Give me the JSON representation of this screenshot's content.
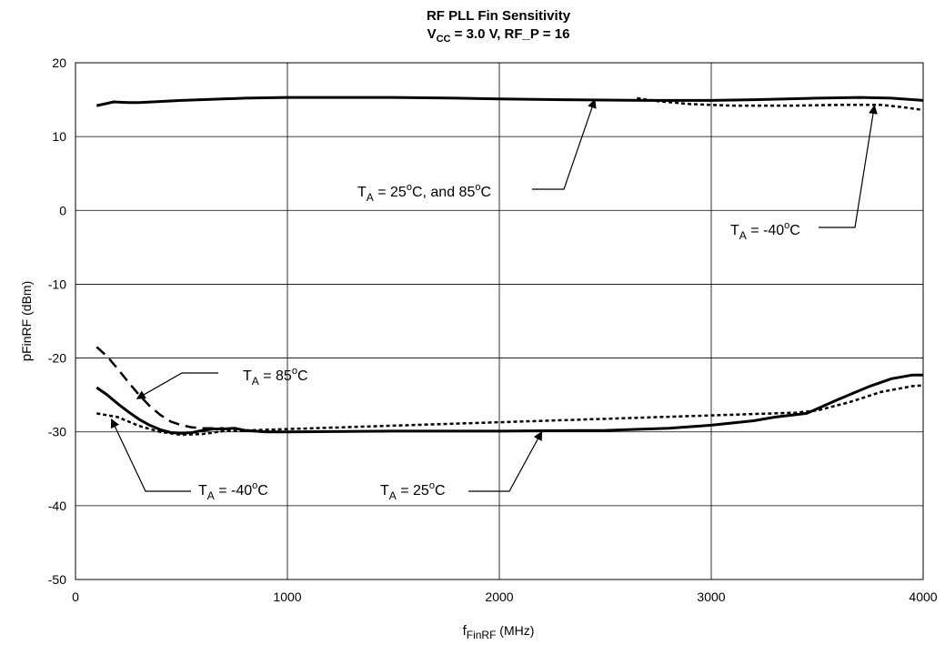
{
  "chart_data": {
    "type": "line",
    "title": "RF PLL Fin Sensitivity",
    "subtitle": {
      "main": "V",
      "sub": "CC",
      "rest": " = 3.0 V, RF_P = 16"
    },
    "xlabel": {
      "main": "f",
      "sub": "FinRF",
      "rest": " (MHz)"
    },
    "ylabel": {
      "main": "p",
      "sub": "FinRF",
      "rest": " (dBm)"
    },
    "xlim": [
      0,
      4000
    ],
    "ylim": [
      -50,
      20
    ],
    "x_ticks": [
      0,
      1000,
      2000,
      3000,
      4000
    ],
    "y_ticks": [
      20,
      10,
      0,
      -10,
      -20,
      -30,
      -40,
      -50
    ],
    "x_tick_labels": [
      "0",
      "1000",
      "2000",
      "3000",
      "4000"
    ],
    "y_tick_labels": [
      "20",
      "10",
      "0",
      "-10",
      "-20",
      "-30",
      "-40",
      "-50"
    ],
    "grid": true,
    "series": [
      {
        "style": "solid",
        "points": [
          [
            100,
            14.2
          ],
          [
            150,
            14.5
          ],
          [
            180,
            14.7
          ],
          [
            250,
            14.6
          ],
          [
            300,
            14.6
          ],
          [
            500,
            14.9
          ],
          [
            800,
            15.2
          ],
          [
            1000,
            15.3
          ],
          [
            1200,
            15.3
          ],
          [
            1500,
            15.3
          ],
          [
            1800,
            15.2
          ],
          [
            2000,
            15.1
          ],
          [
            2300,
            15.0
          ],
          [
            2500,
            14.95
          ],
          [
            2700,
            14.9
          ],
          [
            3000,
            14.9
          ],
          [
            3200,
            15.0
          ],
          [
            3500,
            15.2
          ],
          [
            3700,
            15.3
          ],
          [
            3850,
            15.2
          ],
          [
            4000,
            14.9
          ]
        ]
      },
      {
        "style": "dotted",
        "points": [
          [
            2650,
            15.2
          ],
          [
            2750,
            14.8
          ],
          [
            2900,
            14.4
          ],
          [
            3100,
            14.2
          ],
          [
            3400,
            14.2
          ],
          [
            3600,
            14.3
          ],
          [
            3800,
            14.3
          ],
          [
            3900,
            14.0
          ],
          [
            4000,
            13.6
          ]
        ]
      },
      {
        "style": "dashed",
        "points": [
          [
            100,
            -18.5
          ],
          [
            150,
            -19.8
          ],
          [
            200,
            -21.5
          ],
          [
            250,
            -23.3
          ],
          [
            300,
            -25.0
          ],
          [
            350,
            -26.5
          ],
          [
            400,
            -27.7
          ],
          [
            450,
            -28.6
          ],
          [
            500,
            -29.1
          ],
          [
            550,
            -29.4
          ],
          [
            600,
            -29.5
          ],
          [
            650,
            -29.5
          ],
          [
            700,
            -29.5
          ]
        ]
      },
      {
        "style": "solid",
        "points": [
          [
            100,
            -24.0
          ],
          [
            150,
            -25.0
          ],
          [
            200,
            -26.2
          ],
          [
            250,
            -27.3
          ],
          [
            300,
            -28.3
          ],
          [
            350,
            -29.1
          ],
          [
            400,
            -29.7
          ],
          [
            450,
            -30.1
          ],
          [
            500,
            -30.2
          ],
          [
            550,
            -30.1
          ],
          [
            600,
            -29.8
          ],
          [
            650,
            -29.6
          ],
          [
            700,
            -29.6
          ],
          [
            750,
            -29.5
          ],
          [
            800,
            -29.8
          ],
          [
            900,
            -30.0
          ],
          [
            1000,
            -30.0
          ],
          [
            1500,
            -29.9
          ],
          [
            2000,
            -29.9
          ],
          [
            2500,
            -29.8
          ],
          [
            2800,
            -29.5
          ],
          [
            3000,
            -29.1
          ],
          [
            3200,
            -28.5
          ],
          [
            3300,
            -28.0
          ],
          [
            3450,
            -27.5
          ],
          [
            3600,
            -25.6
          ],
          [
            3750,
            -23.8
          ],
          [
            3850,
            -22.8
          ],
          [
            3950,
            -22.3
          ],
          [
            4000,
            -22.3
          ]
        ]
      },
      {
        "style": "dotted",
        "points": [
          [
            100,
            -27.5
          ],
          [
            200,
            -28.0
          ],
          [
            300,
            -29.2
          ],
          [
            400,
            -30.0
          ],
          [
            500,
            -30.4
          ],
          [
            600,
            -30.3
          ],
          [
            700,
            -29.9
          ],
          [
            3400,
            -27.4
          ],
          [
            3500,
            -27.1
          ],
          [
            3650,
            -26.0
          ],
          [
            3800,
            -24.6
          ],
          [
            3950,
            -23.8
          ],
          [
            4000,
            -23.7
          ]
        ]
      }
    ],
    "annotations": [
      {
        "id": "ta-25-85",
        "parts": [
          "T",
          "A",
          " =  25",
          "o",
          "C, and 85",
          "o",
          "C"
        ],
        "arrow_to": [
          2450,
          15.0
        ]
      },
      {
        "id": "ta-minus40-top",
        "parts": [
          "T",
          "A",
          " = -40",
          "o",
          "C",
          "",
          ""
        ],
        "arrow_to": [
          3770,
          14.2
        ]
      },
      {
        "id": "ta-85",
        "parts": [
          "T",
          "A",
          " = 85",
          "o",
          "C",
          "",
          ""
        ],
        "arrow_to": [
          290,
          -25.5
        ]
      },
      {
        "id": "ta-minus40-bottom",
        "parts": [
          "T",
          "A",
          " = -40",
          "o",
          "C",
          "",
          ""
        ],
        "arrow_to": [
          170,
          -28.3
        ]
      },
      {
        "id": "ta-25",
        "parts": [
          "T",
          "A",
          " = 25",
          "o",
          "C",
          "",
          ""
        ],
        "arrow_to": [
          2200,
          -30.0
        ]
      }
    ]
  }
}
